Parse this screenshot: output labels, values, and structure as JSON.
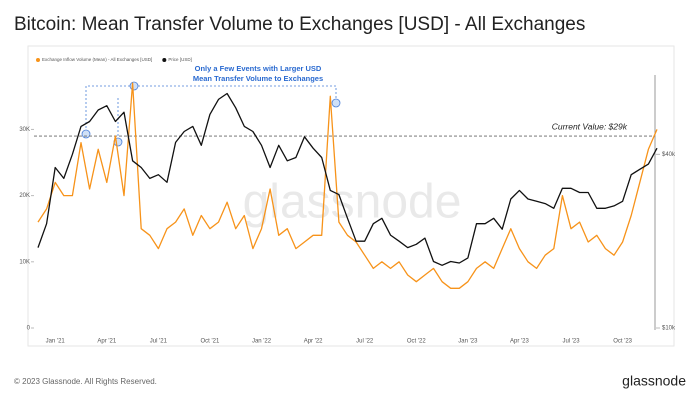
{
  "chart_data": {
    "type": "line",
    "title": "Bitcoin: Mean Transfer Volume to Exchanges [USD] - All Exchanges",
    "footer": "© 2023 Glassnode. All Rights Reserved.",
    "logo": "glassnode",
    "watermark": "glassnode",
    "annotation": "Only a Few Events with Larger USD Mean Transfer Volume to Exchanges",
    "reference_line": {
      "value": 29000,
      "label": "Current Value: $29k"
    },
    "categories": [
      null,
      null,
      "Jan '21",
      null,
      null,
      null,
      null,
      null,
      "Apr '21",
      null,
      null,
      null,
      null,
      null,
      "Jul '21",
      null,
      null,
      null,
      null,
      null,
      "Oct '21",
      null,
      null,
      null,
      null,
      null,
      "Jan '22",
      null,
      null,
      null,
      null,
      null,
      "Apr '22",
      null,
      null,
      null,
      null,
      null,
      "Jul '22",
      null,
      null,
      null,
      null,
      null,
      "Oct '22",
      null,
      null,
      null,
      null,
      null,
      "Jan '23",
      null,
      null,
      null,
      null,
      null,
      "Apr '23",
      null,
      null,
      null,
      null,
      null,
      "Jul '23",
      null,
      null,
      null,
      null,
      null,
      "Oct '23",
      null,
      null,
      null,
      null
    ],
    "series": [
      {
        "name": "Exchange Inflow Volume (Mean) - All Exchanges [USD]",
        "color": "#f7931a",
        "values": [
          16000,
          18000,
          22000,
          20000,
          20000,
          28000,
          21000,
          27000,
          22000,
          29000,
          20000,
          37000,
          15000,
          14000,
          12000,
          15000,
          16000,
          18000,
          14000,
          17000,
          15000,
          16000,
          19000,
          15000,
          17000,
          12000,
          15000,
          21000,
          14000,
          15000,
          12000,
          13000,
          14000,
          14000,
          35000,
          16000,
          14000,
          13000,
          11000,
          9000,
          10000,
          9000,
          10000,
          8000,
          7000,
          8000,
          9000,
          7000,
          6000,
          6000,
          7000,
          9000,
          10000,
          9000,
          12000,
          15000,
          12000,
          10000,
          9000,
          11000,
          12000,
          20000,
          15000,
          16000,
          13000,
          14000,
          12000,
          11000,
          13000,
          17000,
          22000,
          27000,
          30000
        ]
      },
      {
        "name": "Price [USD]",
        "color": "#111111",
        "axis": "y2",
        "values": [
          19000,
          23000,
          36000,
          33000,
          40000,
          50000,
          52000,
          57000,
          59000,
          52000,
          56000,
          38000,
          36000,
          33000,
          34000,
          32000,
          44000,
          48000,
          50000,
          43000,
          55000,
          62000,
          65000,
          58000,
          50000,
          48000,
          43000,
          36000,
          43000,
          38000,
          39000,
          46000,
          42000,
          39000,
          30000,
          29000,
          24000,
          20000,
          20000,
          23000,
          24000,
          21000,
          20000,
          19000,
          19500,
          20500,
          17000,
          16500,
          17000,
          16800,
          17500,
          23000,
          23000,
          24000,
          22000,
          28000,
          30000,
          28000,
          27500,
          27000,
          26000,
          30500,
          30500,
          29500,
          29500,
          26000,
          26000,
          26500,
          27500,
          34000,
          35500,
          37000,
          42000
        ]
      }
    ],
    "ylim": [
      0,
      42000
    ],
    "yticks": [
      0,
      {
        "value": 10000,
        "label": "10K"
      },
      {
        "value": 20000,
        "label": "20K"
      },
      {
        "value": 30000,
        "label": "30K"
      }
    ],
    "y2lim": [
      10000,
      92000
    ],
    "y2ticks": [
      {
        "value": 10000,
        "label": "$10k"
      },
      {
        "value": 40000,
        "label": "$40k"
      }
    ],
    "y2scale": "log",
    "legend": "top-left"
  }
}
